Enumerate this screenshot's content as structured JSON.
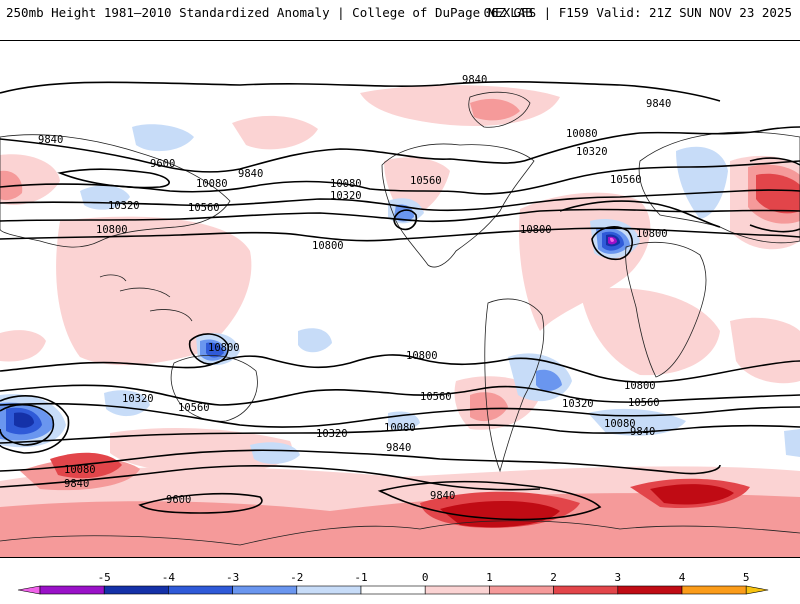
{
  "header": {
    "title_left": "250mb Height 1981–2010 Standardized Anomaly | College of DuPage NEXLAB",
    "title_right": "06Z GFS | F159 Valid: 21Z SUN NOV 23 2025"
  },
  "contour_labels": [
    "9840",
    "9840",
    "9600",
    "10080",
    "9840",
    "10320",
    "10560",
    "10800",
    "10080",
    "10320",
    "10560",
    "10800",
    "10080",
    "10320",
    "10560",
    "10800",
    "9840",
    "10800",
    "10800",
    "10800",
    "10320",
    "10560",
    "10320",
    "10560",
    "10080",
    "9840",
    "10800",
    "10560",
    "10320",
    "10080",
    "9840",
    "10080",
    "9840",
    "9600",
    "9840"
  ],
  "colorbar": {
    "ticks": [
      "-5",
      "-4",
      "-3",
      "-2",
      "-1",
      "0",
      "1",
      "2",
      "3",
      "4",
      "5"
    ],
    "colors": [
      "#f062e9",
      "#9a11c8",
      "#1431a8",
      "#2f5ad8",
      "#6a96ef",
      "#c7dcf8",
      "#ffffff",
      "#fbd3d3",
      "#f59a9a",
      "#e2454a",
      "#c00b14",
      "#fb9c1a",
      "#f6c20f"
    ]
  },
  "anomaly_colors": {
    "light_red": "#fbd3d3",
    "mid_red": "#f59a9a",
    "red": "#e2454a",
    "dark_red": "#c00b14",
    "light_blue": "#c7dcf8",
    "mid_blue": "#6a96ef",
    "blue": "#2f5ad8",
    "dark_blue": "#1431a8",
    "purple": "#9a11c8",
    "magenta": "#f062e9"
  }
}
